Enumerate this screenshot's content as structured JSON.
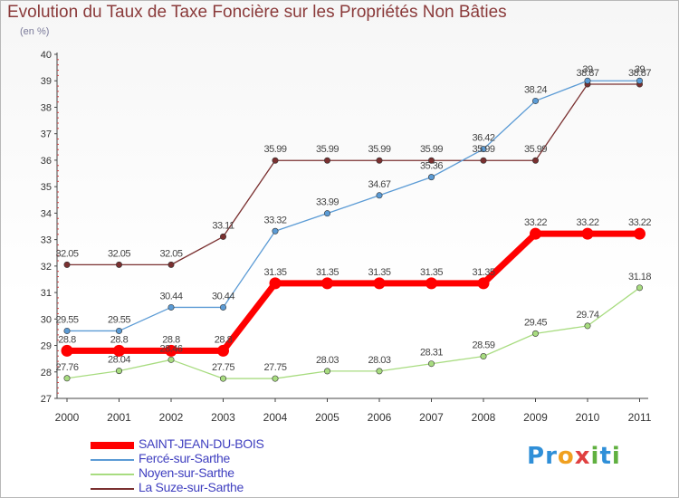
{
  "title": "Evolution du Taux de Taxe Foncière sur les Propriétés Non Bâties",
  "unit_label": "(en %)",
  "logo_text": "Proxiti",
  "chart_data": {
    "type": "line",
    "title": "Evolution du Taux de Taxe Foncière sur les Propriétés Non Bâties",
    "ylabel": "(en %)",
    "xlabel": "",
    "ylim": [
      27,
      40
    ],
    "yticks": [
      "27",
      "28",
      "29",
      "30",
      "31",
      "32",
      "33",
      "34",
      "35",
      "36",
      "37",
      "38",
      "39",
      "40"
    ],
    "categories": [
      "2000",
      "2001",
      "2002",
      "2003",
      "2004",
      "2005",
      "2006",
      "2007",
      "2008",
      "2009",
      "2010",
      "2011"
    ],
    "grid": "none",
    "legend_position": "bottom-left",
    "series": [
      {
        "name": "SAINT-JEAN-DU-BOIS",
        "color": "#ff0000",
        "width": "thick",
        "values": [
          28.8,
          28.8,
          28.8,
          28.8,
          31.35,
          31.35,
          31.35,
          31.35,
          31.35,
          33.22,
          33.22,
          33.22
        ],
        "labels": [
          "28.8",
          "28.8",
          "28.8",
          "28.8",
          "31.35",
          "31.35",
          "31.35",
          "31.35",
          "31.35",
          "33.22",
          "33.22",
          "33.22"
        ]
      },
      {
        "name": "Fercé-sur-Sarthe",
        "color": "#5b9bd5",
        "width": "thin",
        "values": [
          29.55,
          29.55,
          30.44,
          30.44,
          33.32,
          33.99,
          34.67,
          35.36,
          36.42,
          38.24,
          39,
          39
        ],
        "labels": [
          "29.55",
          "29.55",
          "30.44",
          "30.44",
          "33.32",
          "33.99",
          "34.67",
          "35.36",
          "36.42",
          "38.24",
          "39",
          "39"
        ]
      },
      {
        "name": "Noyen-sur-Sarthe",
        "color": "#a8dc80",
        "width": "thin",
        "values": [
          27.76,
          28.04,
          28.46,
          27.75,
          27.75,
          28.03,
          28.03,
          28.31,
          28.59,
          29.45,
          29.74,
          31.18
        ],
        "labels": [
          "27.76",
          "28.04",
          "28.46",
          "27.75",
          "27.75",
          "28.03",
          "28.03",
          "28.31",
          "28.59",
          "29.45",
          "29.74",
          "31.18"
        ]
      },
      {
        "name": "La Suze-sur-Sarthe",
        "color": "#7a3030",
        "width": "thin",
        "values": [
          32.05,
          32.05,
          32.05,
          33.11,
          35.99,
          35.99,
          35.99,
          35.99,
          35.99,
          35.99,
          38.87,
          38.87
        ],
        "labels": [
          "32.05",
          "32.05",
          "32.05",
          "33.11",
          "35.99",
          "35.99",
          "35.99",
          "35.99",
          "35.99",
          "35.99",
          "38.87",
          "38.87"
        ]
      }
    ]
  }
}
